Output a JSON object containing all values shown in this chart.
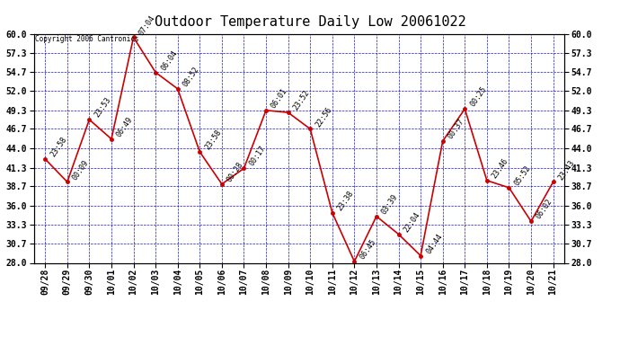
{
  "title": "Outdoor Temperature Daily Low 20061022",
  "copyright_text": "Copyright 2006 Cantronics",
  "x_labels": [
    "09/28",
    "09/29",
    "09/30",
    "10/01",
    "10/02",
    "10/03",
    "10/04",
    "10/05",
    "10/06",
    "10/07",
    "10/08",
    "10/09",
    "10/10",
    "10/11",
    "10/12",
    "10/13",
    "10/14",
    "10/15",
    "10/16",
    "10/17",
    "10/18",
    "10/19",
    "10/20",
    "10/21"
  ],
  "y_values": [
    42.5,
    39.3,
    48.0,
    45.3,
    59.5,
    54.6,
    52.3,
    43.5,
    39.0,
    41.2,
    49.3,
    49.0,
    46.7,
    35.0,
    28.2,
    34.5,
    32.0,
    29.0,
    45.0,
    49.5,
    39.5,
    38.5,
    33.8,
    39.3
  ],
  "time_labels": [
    "23:58",
    "00:09",
    "23:53",
    "06:49",
    "07:04",
    "06:04",
    "08:52",
    "23:58",
    "00:28",
    "00:17",
    "06:01",
    "23:52",
    "22:56",
    "23:38",
    "06:45",
    "03:39",
    "22:04",
    "04:44",
    "00:37",
    "00:25",
    "23:46",
    "05:52",
    "06:02",
    "23:43"
  ],
  "ylim": [
    28.0,
    60.0
  ],
  "yticks": [
    28.0,
    30.7,
    33.3,
    36.0,
    38.7,
    41.3,
    44.0,
    46.7,
    49.3,
    52.0,
    54.7,
    57.3,
    60.0
  ],
  "line_color": "#cc0000",
  "marker_color": "#cc0000",
  "grid_color": "#0000bb",
  "bg_color": "#ffffff",
  "plot_bg_color": "#ffffff",
  "title_fontsize": 11,
  "tick_fontsize": 7,
  "annotation_fontsize": 6,
  "copyright_fontsize": 5.5
}
